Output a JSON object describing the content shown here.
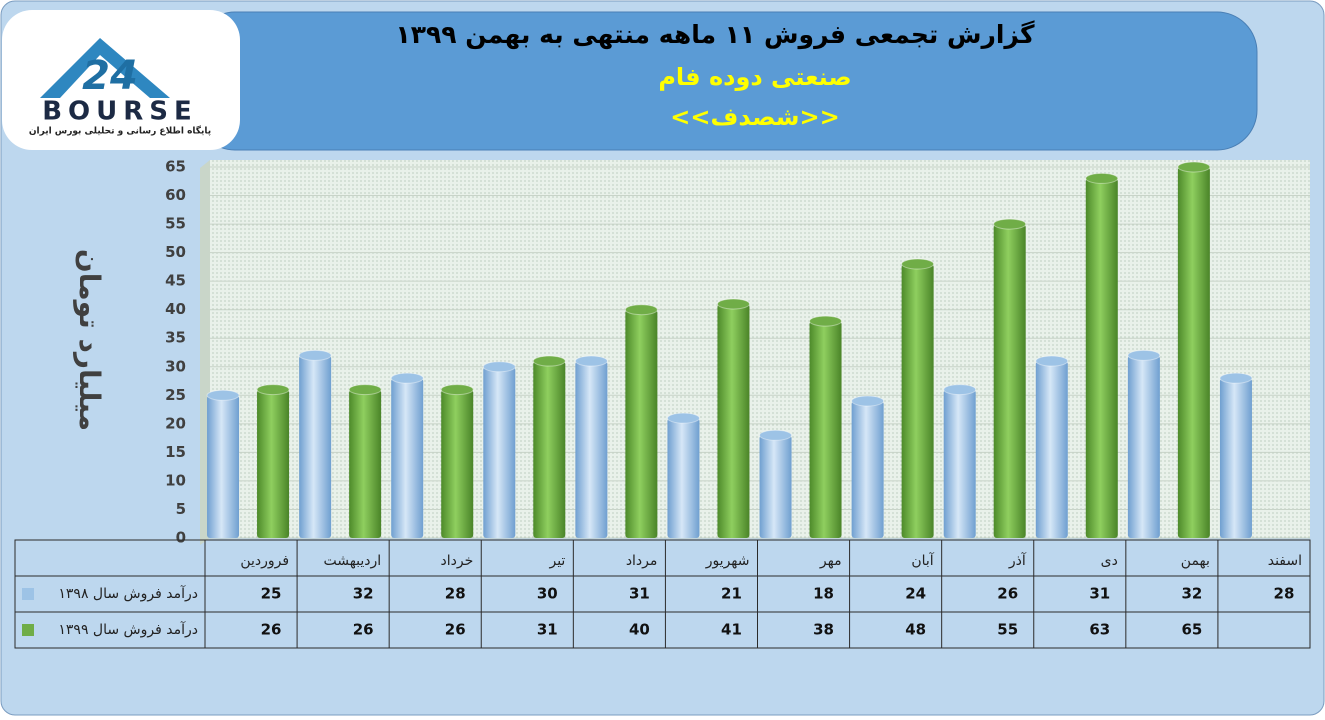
{
  "logo": {
    "mark": "24",
    "name": "BOURSE",
    "tagline": "پایگاه اطلاع رسانی و تحلیلی بورس ایران"
  },
  "chart_data": {
    "type": "bar",
    "title": "گزارش تجمعی فروش ۱۱ ماهه منتهی به بهمن ۱۳۹۹",
    "subtitle": "صنعتی دوده فام",
    "ticker": "<<شصدف>>",
    "y_label": "میلیارد تومان",
    "categories": [
      "فروردین",
      "اردیبهشت",
      "خرداد",
      "تیر",
      "مرداد",
      "شهریور",
      "مهر",
      "آبان",
      "آذر",
      "دی",
      "بهمن",
      "اسفند"
    ],
    "series": [
      {
        "name": "درآمد فروش سال ۱۳۹۸",
        "color": "#9dc3e6",
        "values": [
          25,
          32,
          28,
          30,
          31,
          21,
          18,
          24,
          26,
          31,
          32,
          28
        ]
      },
      {
        "name": "درآمد فروش سال ۱۳۹۹",
        "color": "#70ad47",
        "values": [
          26,
          26,
          26,
          31,
          40,
          41,
          38,
          48,
          55,
          63,
          65,
          null
        ]
      }
    ],
    "ylim": [
      0,
      65
    ],
    "yticks": [
      0,
      5,
      10,
      15,
      20,
      25,
      30,
      35,
      40,
      45,
      50,
      55,
      60,
      65
    ],
    "grid": true
  }
}
